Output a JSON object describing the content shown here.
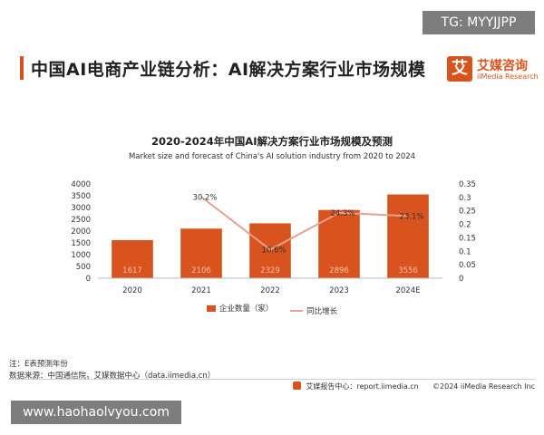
{
  "header": {
    "title": "中国AI电商产业链分析：AI解决方案行业市场规模",
    "logo_mark": "艾",
    "logo_cn": "艾媒咨询",
    "logo_en": "iiMedia Research"
  },
  "overlay": {
    "tg_badge": "TG: MYYJJPP",
    "watermark": "www.haohaolvyou.com"
  },
  "chart_data": {
    "type": "bar",
    "title": "2020-2024年中国AI解决方案行业市场规模及预测",
    "subtitle": "Market size and forecast of China's AI solution industry from 2020 to 2024",
    "categories": [
      "2020",
      "2021",
      "2022",
      "2023",
      "2024E"
    ],
    "series": [
      {
        "name": "企业数量（家）",
        "type": "bar",
        "axis": "left",
        "values": [
          1617,
          2106,
          2329,
          2896,
          3556
        ],
        "labels": [
          "1617",
          "2106",
          "2329",
          "2896",
          "3556"
        ],
        "color": "#d9531e"
      },
      {
        "name": "同比增长",
        "type": "line",
        "axis": "right",
        "values": [
          null,
          0.302,
          0.106,
          0.243,
          0.231
        ],
        "labels": [
          "",
          "30.2%",
          "10.6%",
          "24.3%",
          "23.1%"
        ],
        "color": "#e8a08f"
      }
    ],
    "ylim_left": [
      0,
      4000
    ],
    "yticks_left": [
      "0",
      "500",
      "1000",
      "1500",
      "2000",
      "2500",
      "3000",
      "3500",
      "4000"
    ],
    "ylim_right": [
      0,
      0.35
    ],
    "yticks_right": [
      "0",
      "0.05",
      "0.1",
      "0.15",
      "0.2",
      "0.25",
      "0.3",
      "0.35"
    ],
    "grid": false,
    "legend_position": "bottom"
  },
  "notes": {
    "note1": "注：E表预测年份",
    "note2": "数据来源：中国通信院，艾媒数据中心（data.iimedia.cn）"
  },
  "footer": {
    "report_site": "艾媒报告中心：report.iimedia.cn",
    "copyright": "©2024  iiMedia Research  Inc"
  }
}
